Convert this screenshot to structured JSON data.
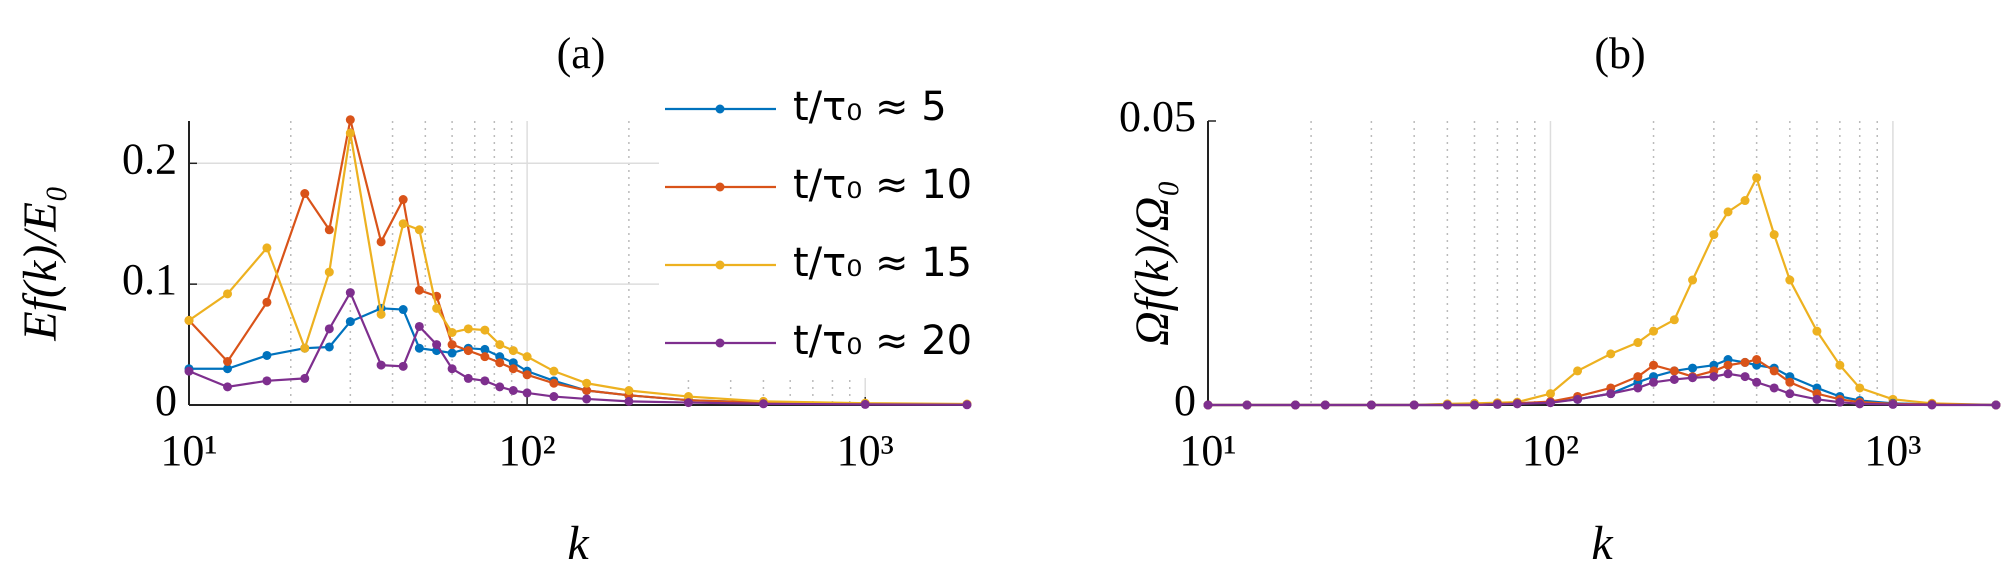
{
  "chart_data": [
    {
      "type": "line",
      "title": "(a)",
      "xlabel": "k",
      "ylabel": "Ef(k)/E₀",
      "log_x": true,
      "grid": true,
      "minor_grid": true,
      "legend": "top-right",
      "xlim": [
        10,
        2000
      ],
      "ylim": [
        0,
        0.235
      ],
      "xticks": [
        {
          "value": 10,
          "label": "10¹"
        },
        {
          "value": 100,
          "label": "10²"
        },
        {
          "value": 1000,
          "label": "10³"
        }
      ],
      "yticks": [
        0,
        0.1,
        0.2
      ],
      "x": [
        10,
        13,
        17,
        22,
        26,
        30,
        37,
        43,
        48,
        54,
        60,
        67,
        75,
        83,
        91,
        100,
        120,
        150,
        200,
        300,
        500,
        1000,
        2000
      ],
      "series": [
        {
          "name": "t/τ₀ ≈ 5",
          "color": "#0072BD",
          "values": [
            0.03,
            0.03,
            0.041,
            0.047,
            0.048,
            0.069,
            0.08,
            0.079,
            0.047,
            0.045,
            0.043,
            0.047,
            0.046,
            0.04,
            0.035,
            0.028,
            0.02,
            0.012,
            0.008,
            0.004,
            0.002,
            0.001,
            0.0005
          ]
        },
        {
          "name": "t/τ₀ ≈ 10",
          "color": "#D95319",
          "values": [
            0.07,
            0.036,
            0.085,
            0.175,
            0.145,
            0.236,
            0.135,
            0.17,
            0.095,
            0.09,
            0.05,
            0.045,
            0.04,
            0.035,
            0.03,
            0.025,
            0.018,
            0.012,
            0.008,
            0.004,
            0.002,
            0.001,
            0.0005
          ]
        },
        {
          "name": "t/τ₀ ≈ 15",
          "color": "#EDB120",
          "values": [
            0.07,
            0.092,
            0.13,
            0.047,
            0.11,
            0.225,
            0.075,
            0.15,
            0.145,
            0.08,
            0.06,
            0.063,
            0.062,
            0.05,
            0.045,
            0.04,
            0.028,
            0.018,
            0.012,
            0.007,
            0.003,
            0.0015,
            0.0008
          ]
        },
        {
          "name": "t/τ₀ ≈ 20",
          "color": "#7E2F8E",
          "values": [
            0.028,
            0.015,
            0.02,
            0.022,
            0.063,
            0.093,
            0.033,
            0.032,
            0.065,
            0.05,
            0.03,
            0.022,
            0.02,
            0.015,
            0.012,
            0.01,
            0.007,
            0.005,
            0.003,
            0.002,
            0.001,
            0.0005,
            0.0002
          ]
        }
      ]
    },
    {
      "type": "line",
      "title": "(b)",
      "xlabel": "k",
      "ylabel": "Ωf(k)/Ω₀",
      "log_x": true,
      "grid": true,
      "minor_grid": true,
      "xlim": [
        10,
        2000
      ],
      "ylim": [
        0,
        0.05
      ],
      "xticks": [
        {
          "value": 10,
          "label": "10¹"
        },
        {
          "value": 100,
          "label": "10²"
        },
        {
          "value": 1000,
          "label": "10³"
        }
      ],
      "yticks": [
        0,
        0.05
      ],
      "x": [
        10,
        13,
        18,
        22,
        30,
        40,
        50,
        60,
        70,
        80,
        100,
        120,
        150,
        180,
        200,
        230,
        260,
        300,
        330,
        370,
        400,
        450,
        500,
        600,
        700,
        800,
        1000,
        1300,
        2000
      ],
      "series": [
        {
          "color": "#EDB120",
          "values": [
            0,
            0,
            0,
            0,
            0,
            0,
            0.0002,
            0.0003,
            0.0004,
            0.0005,
            0.002,
            0.006,
            0.009,
            0.011,
            0.013,
            0.015,
            0.022,
            0.03,
            0.034,
            0.036,
            0.04,
            0.03,
            0.022,
            0.013,
            0.007,
            0.003,
            0.001,
            0.0003,
            0
          ]
        },
        {
          "color": "#0072BD",
          "values": [
            0,
            0,
            0,
            0,
            0,
            0,
            0,
            0,
            0.0002,
            0.0003,
            0.0005,
            0.001,
            0.002,
            0.004,
            0.005,
            0.006,
            0.0065,
            0.007,
            0.008,
            0.0075,
            0.007,
            0.0065,
            0.005,
            0.003,
            0.0015,
            0.0008,
            0.0003,
            0.0001,
            0
          ]
        },
        {
          "color": "#D95319",
          "values": [
            0,
            0,
            0,
            0,
            0,
            0,
            0,
            0,
            0.0002,
            0.0003,
            0.0006,
            0.0015,
            0.003,
            0.005,
            0.007,
            0.006,
            0.005,
            0.006,
            0.007,
            0.0075,
            0.008,
            0.006,
            0.004,
            0.002,
            0.001,
            0.0005,
            0.0002,
            0.0001,
            0
          ]
        },
        {
          "color": "#7E2F8E",
          "values": [
            0,
            0,
            0,
            0,
            0,
            0,
            0,
            0,
            0.0001,
            0.0002,
            0.0004,
            0.001,
            0.002,
            0.003,
            0.004,
            0.0045,
            0.0048,
            0.005,
            0.0055,
            0.005,
            0.004,
            0.003,
            0.002,
            0.001,
            0.0005,
            0.0002,
            0.0001,
            0,
            0
          ]
        }
      ]
    }
  ]
}
